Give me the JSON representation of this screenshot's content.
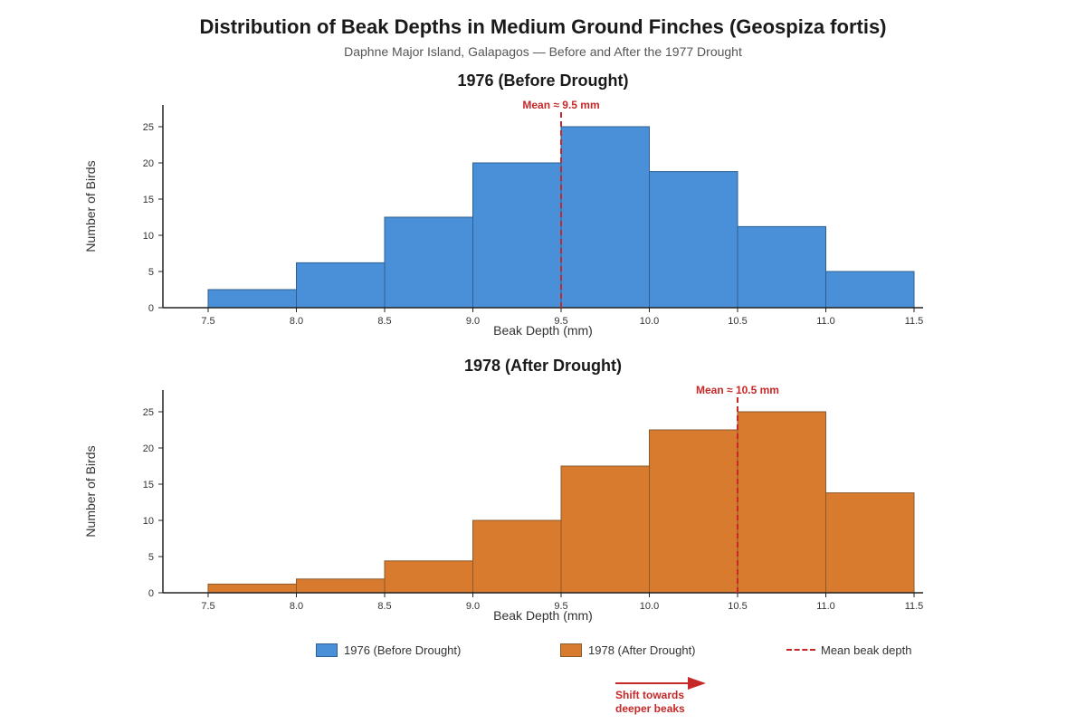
{
  "title": "Distribution of Beak Depths in Medium Ground Finches (Geospiza fortis)",
  "subtitle": "Daphne Major Island, Galapagos — Before and After the 1977 Drought",
  "colors": {
    "before_fill": "#4a90d9",
    "before_stroke": "#2d5f8f",
    "after_fill": "#d97b2e",
    "after_stroke": "#8a5a2b",
    "mean_line": "#c62828",
    "axis": "#222222"
  },
  "legend": {
    "before": "1976 (Before Drought)",
    "after": "1978 (After Drought)",
    "mean": "Mean beak depth"
  },
  "annotation": {
    "line1": "Shift towards",
    "line2": "deeper beaks"
  },
  "chart_data": [
    {
      "type": "bar",
      "title": "1976 (Before Drought)",
      "xlabel": "Beak Depth (mm)",
      "ylabel": "Number of Birds",
      "bin_edges": [
        7.5,
        8.0,
        8.5,
        9.0,
        9.5,
        10.0,
        10.5,
        11.0,
        11.5
      ],
      "values": [
        2.5,
        6.2,
        12.5,
        20,
        25,
        18.8,
        11.2,
        5
      ],
      "xticks": [
        "7.5",
        "8.0",
        "8.5",
        "9.0",
        "9.5",
        "10.0",
        "10.5",
        "11.0",
        "11.5"
      ],
      "yticks": [
        0,
        5,
        10,
        15,
        20,
        25
      ],
      "xlim": [
        7.25,
        11.75
      ],
      "ylim": [
        0,
        28
      ],
      "mean": 9.5,
      "mean_label": "Mean ≈ 9.5 mm",
      "fill": "#4a90d9",
      "stroke": "#2d5f8f"
    },
    {
      "type": "bar",
      "title": "1978 (After Drought)",
      "xlabel": "Beak Depth (mm)",
      "ylabel": "Number of Birds",
      "bin_edges": [
        7.5,
        8.0,
        8.5,
        9.0,
        9.5,
        10.0,
        10.5,
        11.0,
        11.5
      ],
      "values": [
        1.2,
        1.9,
        4.4,
        10,
        17.5,
        22.5,
        25,
        13.8
      ],
      "xticks": [
        "7.5",
        "8.0",
        "8.5",
        "9.0",
        "9.5",
        "10.0",
        "10.5",
        "11.0",
        "11.5"
      ],
      "yticks": [
        0,
        5,
        10,
        15,
        20,
        25
      ],
      "xlim": [
        7.25,
        11.75
      ],
      "ylim": [
        0,
        28
      ],
      "mean": 10.5,
      "mean_label": "Mean ≈ 10.5 mm",
      "fill": "#d97b2e",
      "stroke": "#8a5a2b"
    }
  ]
}
